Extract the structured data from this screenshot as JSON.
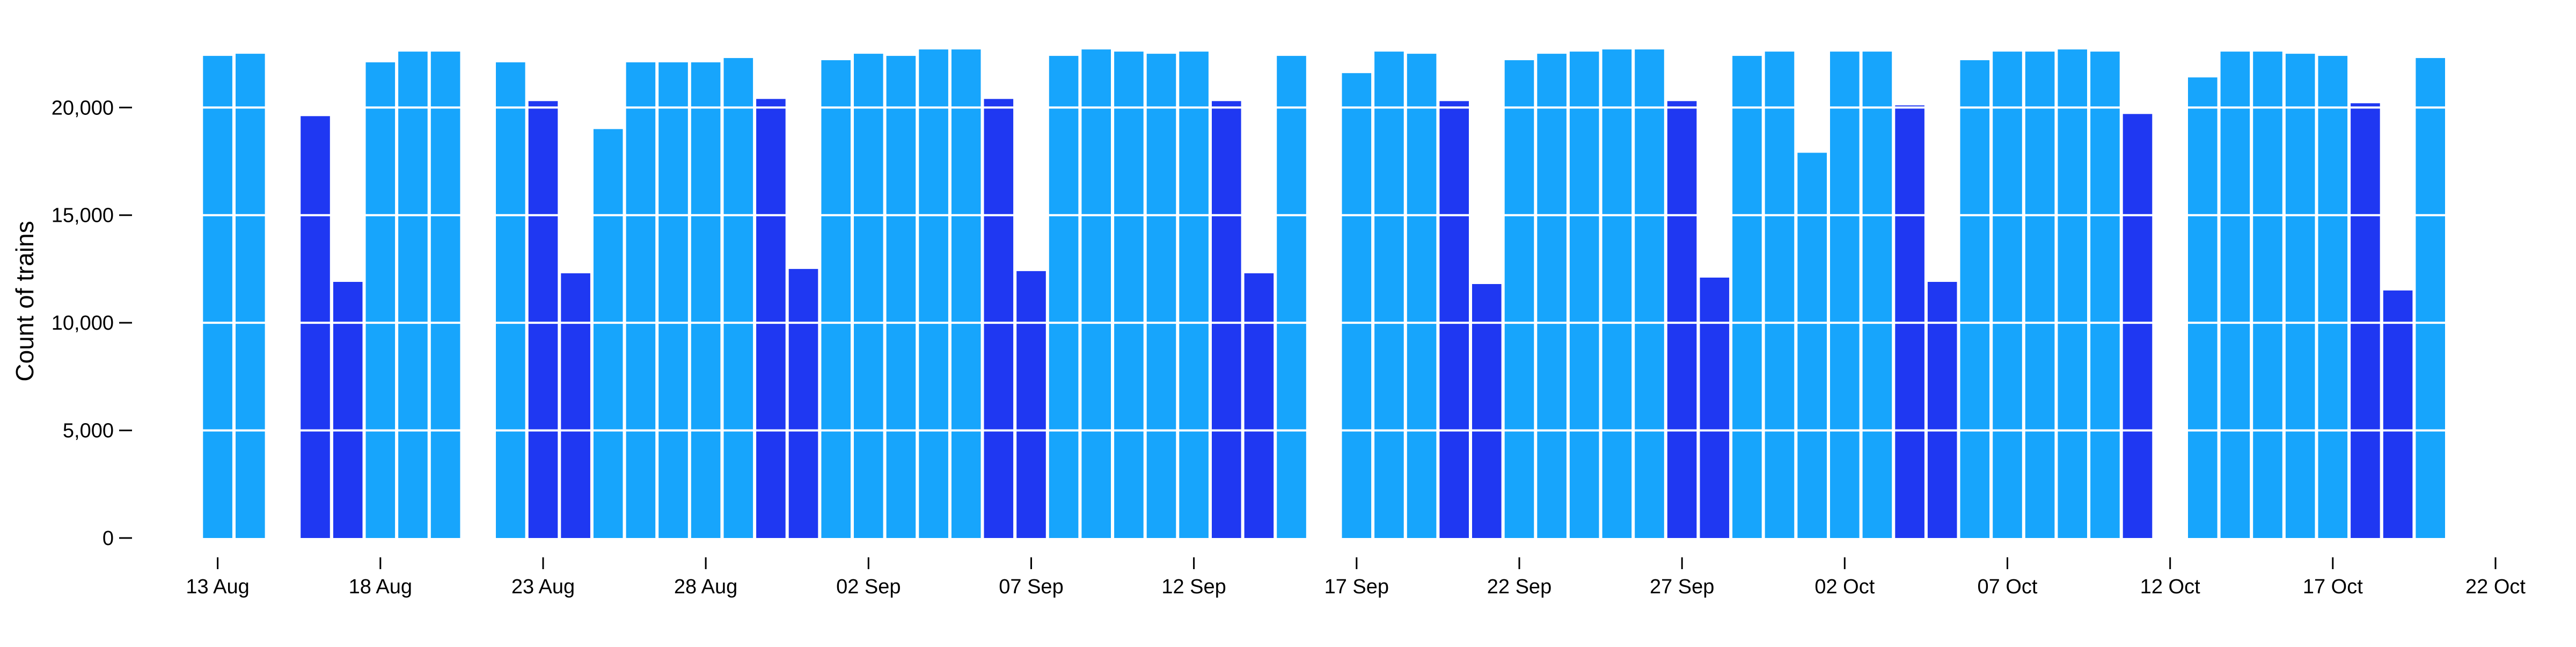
{
  "chart_data": {
    "type": "bar",
    "ylabel": "Count of trains",
    "xlabel": "",
    "title": "",
    "ylim": [
      0,
      23500
    ],
    "xlim": [
      "2025-08-12",
      "2025-10-22"
    ],
    "yticks": [
      0,
      5000,
      10000,
      15000,
      20000
    ],
    "ytick_labels": [
      "0",
      "5,000",
      "10,000",
      "15,000",
      "20,000"
    ],
    "xticks": [
      "2025-08-13",
      "2025-08-18",
      "2025-08-23",
      "2025-08-28",
      "2025-09-02",
      "2025-09-07",
      "2025-09-12",
      "2025-09-17",
      "2025-09-22",
      "2025-09-27",
      "2025-10-02",
      "2025-10-07",
      "2025-10-12",
      "2025-10-17",
      "2025-10-22"
    ],
    "xtick_labels": [
      "13 Aug",
      "18 Aug",
      "23 Aug",
      "28 Aug",
      "02 Sep",
      "07 Sep",
      "12 Sep",
      "17 Sep",
      "22 Sep",
      "27 Sep",
      "02 Oct",
      "07 Oct",
      "12 Oct",
      "17 Oct",
      "22 Oct"
    ],
    "grid": "horizontal",
    "colors": {
      "weekday": "#17a5fc",
      "weekend": "#1f38f2",
      "grid": "#ffffff"
    },
    "series_key": {
      "weekday": "light blue",
      "weekend": "dark blue"
    },
    "bars": [
      {
        "date": "2025-08-13",
        "value": 22400,
        "kind": "weekday"
      },
      {
        "date": "2025-08-14",
        "value": 22500,
        "kind": "weekday"
      },
      {
        "date": "2025-08-16",
        "value": 19600,
        "kind": "weekend"
      },
      {
        "date": "2025-08-17",
        "value": 11900,
        "kind": "weekend"
      },
      {
        "date": "2025-08-18",
        "value": 22100,
        "kind": "weekday"
      },
      {
        "date": "2025-08-19",
        "value": 22600,
        "kind": "weekday"
      },
      {
        "date": "2025-08-20",
        "value": 22600,
        "kind": "weekday"
      },
      {
        "date": "2025-08-22",
        "value": 22100,
        "kind": "weekday"
      },
      {
        "date": "2025-08-23",
        "value": 20300,
        "kind": "weekend"
      },
      {
        "date": "2025-08-24",
        "value": 12300,
        "kind": "weekend"
      },
      {
        "date": "2025-08-25",
        "value": 19000,
        "kind": "weekday"
      },
      {
        "date": "2025-08-26",
        "value": 22100,
        "kind": "weekday"
      },
      {
        "date": "2025-08-27",
        "value": 22100,
        "kind": "weekday"
      },
      {
        "date": "2025-08-28",
        "value": 22100,
        "kind": "weekday"
      },
      {
        "date": "2025-08-29",
        "value": 22300,
        "kind": "weekday"
      },
      {
        "date": "2025-08-30",
        "value": 20400,
        "kind": "weekend"
      },
      {
        "date": "2025-08-31",
        "value": 12500,
        "kind": "weekend"
      },
      {
        "date": "2025-09-01",
        "value": 22200,
        "kind": "weekday"
      },
      {
        "date": "2025-09-02",
        "value": 22500,
        "kind": "weekday"
      },
      {
        "date": "2025-09-03",
        "value": 22400,
        "kind": "weekday"
      },
      {
        "date": "2025-09-04",
        "value": 22700,
        "kind": "weekday"
      },
      {
        "date": "2025-09-05",
        "value": 22700,
        "kind": "weekday"
      },
      {
        "date": "2025-09-06",
        "value": 20400,
        "kind": "weekend"
      },
      {
        "date": "2025-09-07",
        "value": 12400,
        "kind": "weekend"
      },
      {
        "date": "2025-09-08",
        "value": 22400,
        "kind": "weekday"
      },
      {
        "date": "2025-09-09",
        "value": 22700,
        "kind": "weekday"
      },
      {
        "date": "2025-09-10",
        "value": 22600,
        "kind": "weekday"
      },
      {
        "date": "2025-09-11",
        "value": 22500,
        "kind": "weekday"
      },
      {
        "date": "2025-09-12",
        "value": 22600,
        "kind": "weekday"
      },
      {
        "date": "2025-09-13",
        "value": 20300,
        "kind": "weekend"
      },
      {
        "date": "2025-09-14",
        "value": 12300,
        "kind": "weekend"
      },
      {
        "date": "2025-09-15",
        "value": 22400,
        "kind": "weekday"
      },
      {
        "date": "2025-09-17",
        "value": 21600,
        "kind": "weekday"
      },
      {
        "date": "2025-09-18",
        "value": 22600,
        "kind": "weekday"
      },
      {
        "date": "2025-09-19",
        "value": 22500,
        "kind": "weekday"
      },
      {
        "date": "2025-09-20",
        "value": 20300,
        "kind": "weekend"
      },
      {
        "date": "2025-09-21",
        "value": 11800,
        "kind": "weekend"
      },
      {
        "date": "2025-09-22",
        "value": 22200,
        "kind": "weekday"
      },
      {
        "date": "2025-09-23",
        "value": 22500,
        "kind": "weekday"
      },
      {
        "date": "2025-09-24",
        "value": 22600,
        "kind": "weekday"
      },
      {
        "date": "2025-09-25",
        "value": 22700,
        "kind": "weekday"
      },
      {
        "date": "2025-09-26",
        "value": 22700,
        "kind": "weekday"
      },
      {
        "date": "2025-09-27",
        "value": 20300,
        "kind": "weekend"
      },
      {
        "date": "2025-09-28",
        "value": 12100,
        "kind": "weekend"
      },
      {
        "date": "2025-09-29",
        "value": 22400,
        "kind": "weekday"
      },
      {
        "date": "2025-09-30",
        "value": 22600,
        "kind": "weekday"
      },
      {
        "date": "2025-10-01",
        "value": 17900,
        "kind": "weekday"
      },
      {
        "date": "2025-10-02",
        "value": 22600,
        "kind": "weekday"
      },
      {
        "date": "2025-10-03",
        "value": 22600,
        "kind": "weekday"
      },
      {
        "date": "2025-10-04",
        "value": 20100,
        "kind": "weekend"
      },
      {
        "date": "2025-10-05",
        "value": 11900,
        "kind": "weekend"
      },
      {
        "date": "2025-10-06",
        "value": 22200,
        "kind": "weekday"
      },
      {
        "date": "2025-10-07",
        "value": 22600,
        "kind": "weekday"
      },
      {
        "date": "2025-10-08",
        "value": 22600,
        "kind": "weekday"
      },
      {
        "date": "2025-10-09",
        "value": 22700,
        "kind": "weekday"
      },
      {
        "date": "2025-10-10",
        "value": 22600,
        "kind": "weekday"
      },
      {
        "date": "2025-10-11",
        "value": 19700,
        "kind": "weekend"
      },
      {
        "date": "2025-10-13",
        "value": 21400,
        "kind": "weekday"
      },
      {
        "date": "2025-10-14",
        "value": 22600,
        "kind": "weekday"
      },
      {
        "date": "2025-10-15",
        "value": 22600,
        "kind": "weekday"
      },
      {
        "date": "2025-10-16",
        "value": 22500,
        "kind": "weekday"
      },
      {
        "date": "2025-10-17",
        "value": 22400,
        "kind": "weekday"
      },
      {
        "date": "2025-10-18",
        "value": 20200,
        "kind": "weekend"
      },
      {
        "date": "2025-10-19",
        "value": 11500,
        "kind": "weekend"
      },
      {
        "date": "2025-10-20",
        "value": 22300,
        "kind": "weekday"
      }
    ]
  }
}
